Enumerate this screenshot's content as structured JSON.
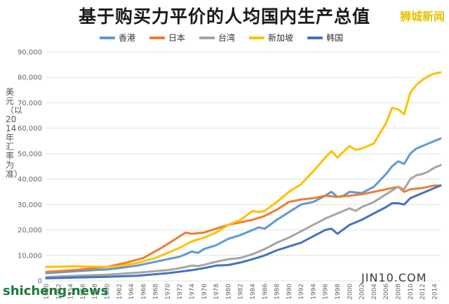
{
  "chart_data": {
    "type": "line",
    "title": "基于购买力平价的人均国内生产总值",
    "ylabel": "美元（以2014年汇率为准）",
    "ylim": [
      0,
      90000
    ],
    "yticks": [
      "0",
      "10,000",
      "20,000",
      "30,000",
      "40,000",
      "50,000",
      "60,000",
      "70,000",
      "80,000",
      "90,000"
    ],
    "xticks": [
      "1950",
      "1952",
      "1954",
      "1956",
      "1958",
      "1960",
      "1962",
      "1964",
      "1966",
      "1968",
      "1970",
      "1972",
      "1974",
      "1976",
      "1978",
      "1980",
      "1982",
      "1984",
      "1986",
      "1988",
      "1990",
      "1992",
      "1994",
      "1996",
      "1998",
      "2000",
      "2002",
      "2004",
      "2006",
      "2008",
      "2010",
      "2012",
      "2014"
    ],
    "xrange": [
      1950,
      2015
    ],
    "grid": "horizontal",
    "legend_position": "top",
    "series": [
      {
        "name": "香港",
        "color": "#5b9bd5",
        "x": [
          1950,
          1955,
          1960,
          1962,
          1965,
          1968,
          1970,
          1972,
          1974,
          1975,
          1976,
          1978,
          1980,
          1982,
          1984,
          1985,
          1986,
          1988,
          1990,
          1992,
          1994,
          1996,
          1997,
          1998,
          1999,
          2000,
          2002,
          2004,
          2006,
          2007,
          2008,
          2009,
          2010,
          2011,
          2012,
          2014,
          2015
        ],
        "y": [
          3000,
          3800,
          4500,
          5000,
          6000,
          7500,
          8500,
          9500,
          11500,
          11000,
          12500,
          14000,
          16500,
          18000,
          20000,
          21000,
          20500,
          24000,
          27000,
          30000,
          31000,
          33500,
          35000,
          33000,
          33500,
          35000,
          34500,
          37000,
          42000,
          45000,
          47000,
          46000,
          50000,
          52000,
          53000,
          55000,
          56000
        ]
      },
      {
        "name": "日本",
        "color": "#ed7d31",
        "x": [
          1950,
          1955,
          1960,
          1963,
          1966,
          1969,
          1972,
          1973,
          1974,
          1976,
          1978,
          1980,
          1982,
          1984,
          1986,
          1988,
          1990,
          1992,
          1994,
          1996,
          1998,
          2000,
          2002,
          2004,
          2006,
          2008,
          2009,
          2010,
          2012,
          2014,
          2015
        ],
        "y": [
          3500,
          4300,
          5500,
          7000,
          9000,
          13000,
          17500,
          19000,
          18500,
          19000,
          20500,
          22000,
          23000,
          24000,
          25500,
          28000,
          31000,
          32000,
          32500,
          33500,
          33000,
          33500,
          34000,
          35000,
          36000,
          37000,
          35000,
          36000,
          36500,
          37500,
          37500
        ]
      },
      {
        "name": "台湾",
        "color": "#a5a5a5",
        "x": [
          1950,
          1955,
          1960,
          1965,
          1970,
          1972,
          1974,
          1975,
          1976,
          1978,
          1980,
          1982,
          1984,
          1986,
          1988,
          1990,
          1992,
          1994,
          1996,
          1998,
          2000,
          2001,
          2002,
          2004,
          2006,
          2008,
          2009,
          2010,
          2011,
          2012,
          2013,
          2014,
          2015
        ],
        "y": [
          1500,
          2000,
          2400,
          3200,
          4200,
          5000,
          6000,
          5800,
          6300,
          7500,
          8500,
          9000,
          10500,
          12500,
          15000,
          17000,
          19500,
          22000,
          24500,
          26500,
          28500,
          27500,
          29000,
          31000,
          34000,
          37000,
          36000,
          40000,
          41500,
          42000,
          43000,
          44500,
          45500
        ]
      },
      {
        "name": "新加坡",
        "color": "#ffc000",
        "x": [
          1950,
          1955,
          1960,
          1962,
          1965,
          1968,
          1970,
          1972,
          1974,
          1976,
          1978,
          1980,
          1982,
          1984,
          1985,
          1986,
          1988,
          1990,
          1992,
          1994,
          1996,
          1997,
          1998,
          2000,
          2001,
          2002,
          2004,
          2006,
          2007,
          2008,
          2009,
          2010,
          2011,
          2012,
          2013,
          2014,
          2015
        ],
        "y": [
          5500,
          5700,
          5500,
          5800,
          7000,
          9000,
          11000,
          13000,
          15500,
          17000,
          19000,
          22000,
          24000,
          27500,
          27000,
          27500,
          31000,
          35000,
          38000,
          43000,
          48500,
          51000,
          48500,
          53000,
          51500,
          52000,
          54000,
          62000,
          68000,
          67500,
          65500,
          74000,
          77000,
          79000,
          80500,
          81500,
          82000
        ]
      },
      {
        "name": "韩国",
        "color": "#4472c4",
        "x": [
          1950,
          1955,
          1960,
          1965,
          1970,
          1974,
          1976,
          1978,
          1980,
          1982,
          1984,
          1986,
          1988,
          1990,
          1992,
          1994,
          1996,
          1997,
          1998,
          2000,
          2002,
          2004,
          2006,
          2007,
          2008,
          2009,
          2010,
          2012,
          2014,
          2015
        ],
        "y": [
          1000,
          1300,
          1600,
          2000,
          3000,
          4200,
          5000,
          6000,
          6200,
          7200,
          8500,
          10000,
          12000,
          13500,
          15000,
          17500,
          20000,
          20500,
          18500,
          22000,
          24000,
          26500,
          29000,
          30500,
          30500,
          30000,
          32500,
          34500,
          36500,
          37500
        ]
      }
    ],
    "annotations": [
      "狮城新闻",
      "JIN10.COM",
      "shicheng.news"
    ]
  }
}
